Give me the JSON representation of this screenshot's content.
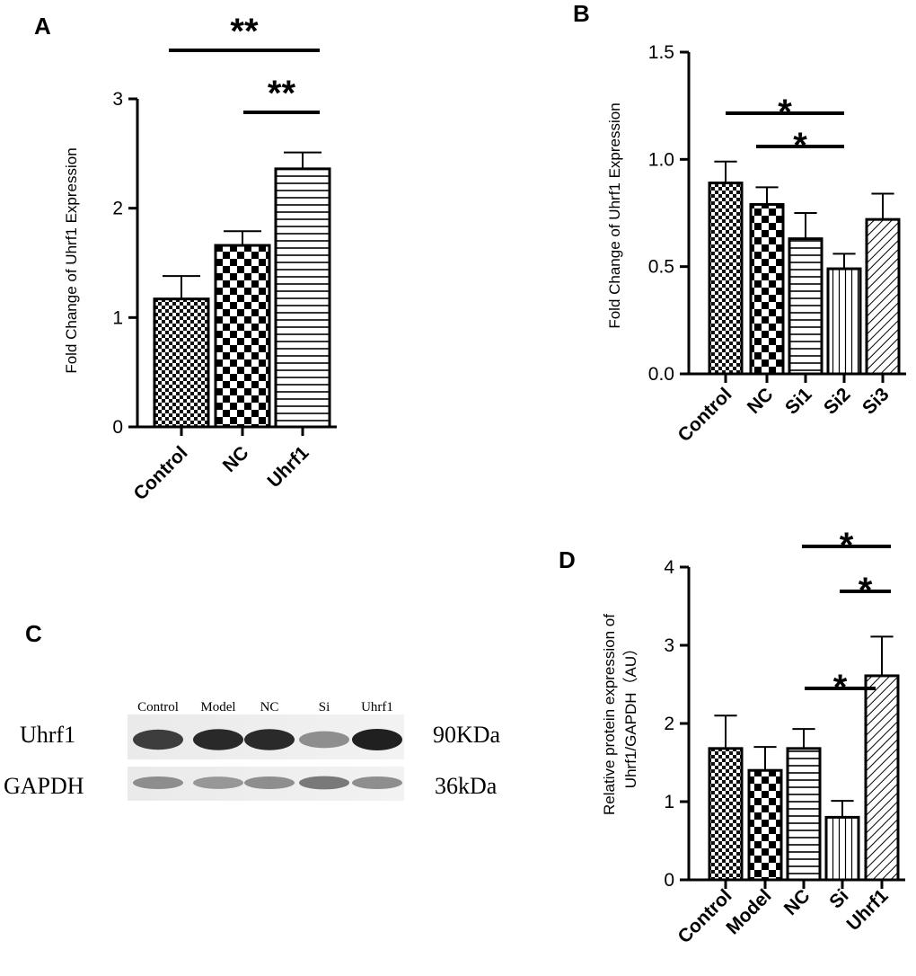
{
  "panels": {
    "a": "A",
    "b": "B",
    "c": "C",
    "d": "D"
  },
  "chart_data": [
    {
      "id": "A",
      "type": "bar",
      "categories": [
        "Control",
        "NC",
        "Uhrf1"
      ],
      "values": [
        1.17,
        1.66,
        2.36
      ],
      "errors": [
        0.21,
        0.13,
        0.15
      ],
      "ylabel": "Fold Change of Uhrf1 Expression",
      "ylim": [
        0,
        3
      ],
      "yticks": [
        0,
        1,
        2,
        3
      ],
      "patterns": [
        "fine-check",
        "check",
        "hlines"
      ],
      "significance": [
        {
          "from": 0,
          "to": 2,
          "label": "**"
        },
        {
          "from": 1,
          "to": 2,
          "label": "**"
        }
      ]
    },
    {
      "id": "B",
      "type": "bar",
      "categories": [
        "Control",
        "NC",
        "Si1",
        "Si2",
        "Si3"
      ],
      "values": [
        0.89,
        0.79,
        0.63,
        0.49,
        0.72
      ],
      "errors": [
        0.1,
        0.08,
        0.12,
        0.07,
        0.12
      ],
      "ylabel": "Fold Change of Uhrf1 Expression",
      "ylim": [
        0,
        1.5
      ],
      "yticks": [
        "0.0",
        "0.5",
        "1.0",
        "1.5"
      ],
      "patterns": [
        "fine-check",
        "check",
        "hlines",
        "vlines",
        "diag"
      ],
      "significance": [
        {
          "from": 0,
          "to": 3,
          "label": "*"
        },
        {
          "from": 1,
          "to": 3,
          "label": "*"
        }
      ]
    },
    {
      "id": "D",
      "type": "bar",
      "categories": [
        "Control",
        "Model",
        "NC",
        "Si",
        "Uhrf1"
      ],
      "values": [
        1.68,
        1.4,
        1.68,
        0.8,
        2.61
      ],
      "errors": [
        0.42,
        0.3,
        0.25,
        0.21,
        0.5
      ],
      "ylabel_line1": "Relative protein expression of",
      "ylabel_line2": "Uhrf1/GAPDH（AU）",
      "ylim": [
        0,
        4
      ],
      "yticks": [
        0,
        1,
        2,
        3,
        4
      ],
      "patterns": [
        "fine-check",
        "check",
        "hlines",
        "vlines",
        "diag"
      ],
      "significance": [
        {
          "from": 2,
          "to": 4,
          "label": "*"
        },
        {
          "from": 3,
          "to": 4,
          "label": "*"
        },
        {
          "from": 2,
          "to": 3,
          "label": "*"
        }
      ]
    }
  ],
  "blot": {
    "lanes": [
      "Control",
      "Model",
      "NC",
      "Si",
      "Uhrf1"
    ],
    "rows": [
      {
        "name": "Uhrf1",
        "size": "90KDa",
        "intensity": [
          0.85,
          0.95,
          0.95,
          0.45,
          1.0
        ]
      },
      {
        "name": "GAPDH",
        "size": "36kDa",
        "intensity": [
          0.45,
          0.4,
          0.45,
          0.55,
          0.45
        ]
      }
    ]
  }
}
